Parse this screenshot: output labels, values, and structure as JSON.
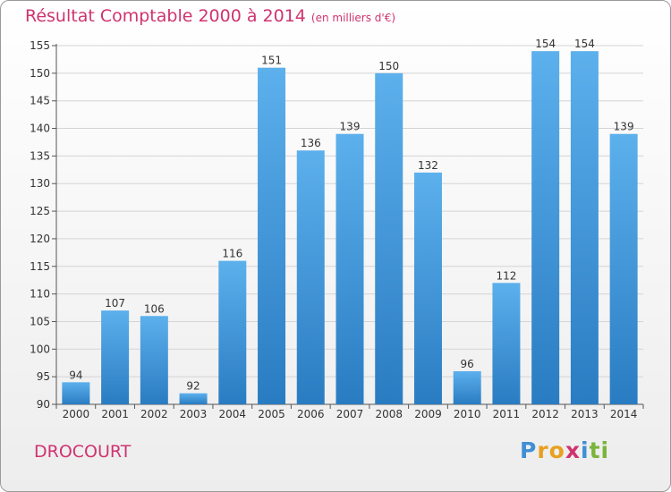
{
  "title": "Résultat Comptable 2000 à 2014",
  "subtitle": "(en milliers d'€)",
  "commune": "DROCOURT",
  "logo": {
    "letters": [
      "P",
      "r",
      "o",
      "x",
      "i",
      "t",
      "i"
    ],
    "colors": [
      "#3f8fd6",
      "#e8a020",
      "#e8a020",
      "#d0336e",
      "#3f8fd6",
      "#7ab43a",
      "#7ab43a"
    ]
  },
  "chart_data": {
    "type": "bar",
    "categories": [
      "2000",
      "2001",
      "2002",
      "2003",
      "2004",
      "2005",
      "2006",
      "2007",
      "2008",
      "2009",
      "2010",
      "2011",
      "2012",
      "2013",
      "2014"
    ],
    "values": [
      94,
      107,
      106,
      92,
      116,
      151,
      136,
      139,
      150,
      132,
      96,
      112,
      154,
      154,
      139
    ],
    "ylim": [
      90,
      155
    ],
    "yticks": [
      90,
      95,
      100,
      105,
      110,
      115,
      120,
      125,
      130,
      135,
      140,
      145,
      150,
      155
    ],
    "grid": true,
    "bar_color": "#4a9ee0",
    "legend": "none"
  }
}
